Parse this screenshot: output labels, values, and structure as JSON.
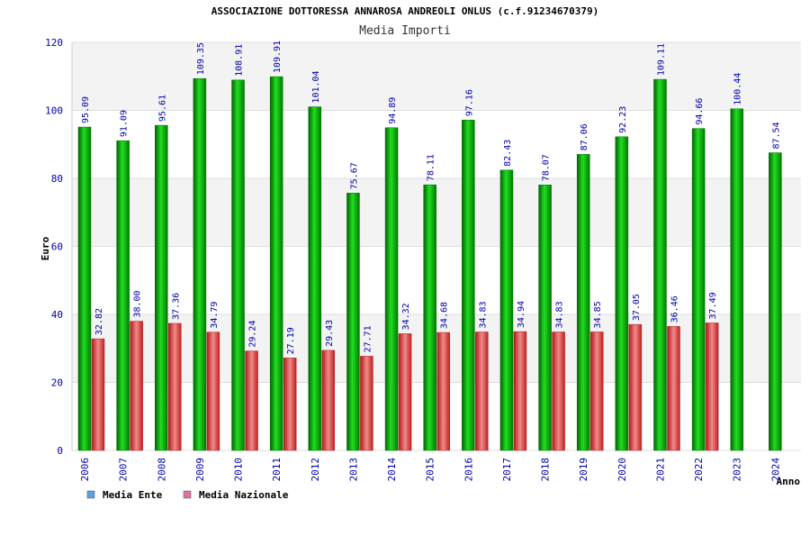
{
  "chart_data": {
    "type": "bar",
    "title": "ASSOCIAZIONE DOTTORESSA ANNAROSA ANDREOLI ONLUS (c.f.91234670379)",
    "subtitle": "Media Importi",
    "xlabel": "Anno",
    "ylabel": "Euro",
    "ylim": [
      0,
      120
    ],
    "yticks": [
      0,
      20,
      40,
      60,
      80,
      100,
      120
    ],
    "grid": true,
    "legend_position": "bottom-left",
    "categories": [
      "2006",
      "2007",
      "2008",
      "2009",
      "2010",
      "2011",
      "2012",
      "2013",
      "2014",
      "2015",
      "2016",
      "2017",
      "2018",
      "2019",
      "2020",
      "2021",
      "2022",
      "2023",
      "2024"
    ],
    "series": [
      {
        "name": "Media Ente",
        "color": "#00b000",
        "legend_color": "#5aa0e6",
        "values": [
          95.09,
          91.09,
          95.61,
          109.35,
          108.91,
          109.91,
          101.04,
          75.67,
          94.89,
          78.11,
          97.16,
          82.43,
          78.07,
          87.06,
          92.23,
          109.11,
          94.66,
          100.44,
          87.54
        ],
        "labels": [
          "95.09",
          "91.09",
          "95.61",
          "109.35",
          "108.91",
          "109.91",
          "101.04",
          "75.67",
          "94.89",
          "78.11",
          "97.16",
          "82.43",
          "78.07",
          "87.06",
          "92.23",
          "109.11",
          "94.66",
          "100.44",
          "87.54"
        ]
      },
      {
        "name": "Media Nazionale",
        "color": "#e03030",
        "legend_color": "#e070a0",
        "values": [
          32.82,
          38.0,
          37.36,
          34.79,
          29.24,
          27.19,
          29.43,
          27.71,
          34.32,
          34.68,
          34.83,
          34.94,
          34.83,
          34.85,
          37.05,
          36.46,
          37.49,
          null,
          null
        ],
        "labels": [
          "32.82",
          "38.00",
          "37.36",
          "34.79",
          "29.24",
          "27.19",
          "29.43",
          "27.71",
          "34.32",
          "34.68",
          "34.83",
          "34.94",
          "34.83",
          "34.85",
          "37.05",
          "36.46",
          "37.49",
          "",
          ""
        ]
      }
    ],
    "colors": {
      "axis_text": "#0000aa",
      "title_text": "#000000",
      "band_light": "#f3f3f3",
      "band_white": "#ffffff",
      "grid_line": "#dddddd"
    }
  }
}
